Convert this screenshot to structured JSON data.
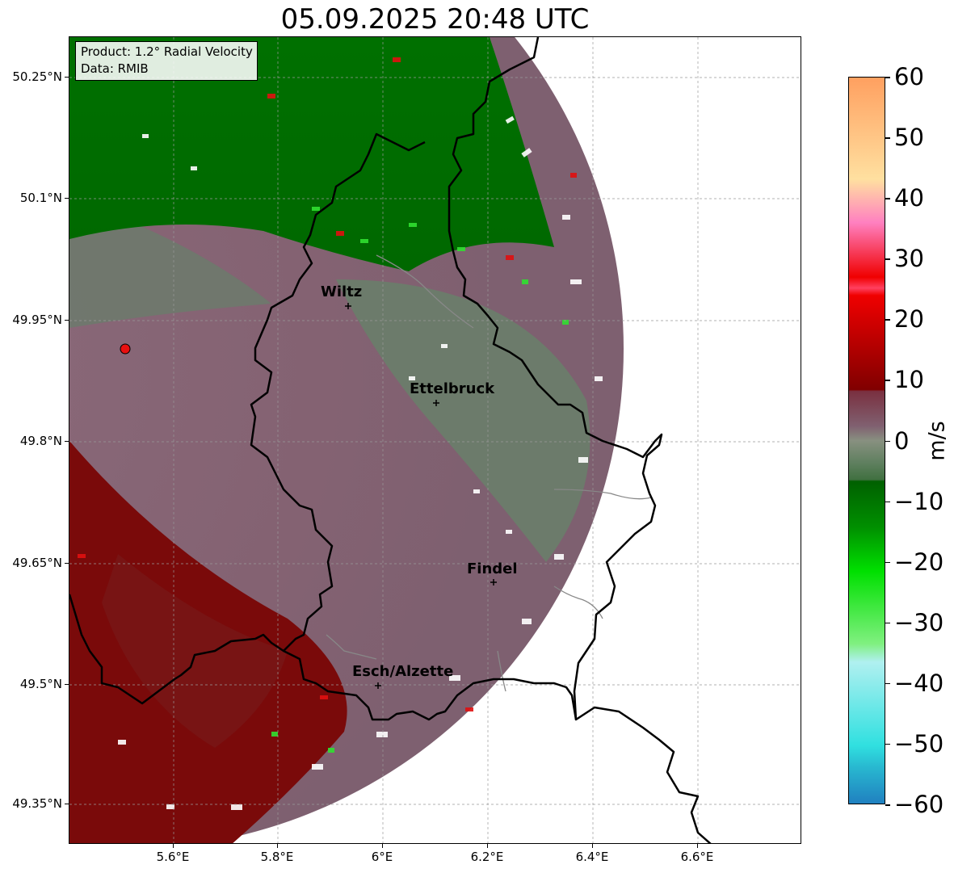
{
  "title": "05.09.2025 20:48 UTC",
  "info": {
    "product": "Product: 1.2° Radial Velocity",
    "data": "Data: RMIB"
  },
  "map": {
    "lat_ticks": [
      "50.25°N",
      "50.1°N",
      "49.95°N",
      "49.8°N",
      "49.65°N",
      "49.5°N",
      "49.35°N"
    ],
    "lon_ticks": [
      "5.6°E",
      "5.8°E",
      "6°E",
      "6.2°E",
      "6.4°E",
      "6.6°E"
    ],
    "radar_site": {
      "lon": 5.505,
      "lat": 49.914
    },
    "places": [
      {
        "name": "Wiltz",
        "lon": 5.935,
        "lat": 49.966
      },
      {
        "name": "Ettelbruck",
        "lon": 6.104,
        "lat": 49.848
      },
      {
        "name": "Findel",
        "lon": 6.212,
        "lat": 49.625
      },
      {
        "name": "Esch/Alzette",
        "lon": 5.99,
        "lat": 49.497
      }
    ]
  },
  "colorbar": {
    "label": "m/s",
    "ticks": [
      "60",
      "50",
      "40",
      "30",
      "20",
      "10",
      "0",
      "−10",
      "−20",
      "−30",
      "−40",
      "−50",
      "−60"
    ],
    "min": -60,
    "max": 60,
    "colors": {
      "negative_high": "#2080c0",
      "cyan": "#30e0e0",
      "light_cyan": "#b0f0f0",
      "light_green": "#80f080",
      "bright_green": "#00e000",
      "green": "#009000",
      "dark_green": "#006000",
      "grey_green": "#608060",
      "mauve": "#806070",
      "dark_red": "#800000",
      "red": "#f00000",
      "pink": "#ff80c0",
      "peach": "#ffe0a0",
      "orange": "#ffa060"
    }
  }
}
